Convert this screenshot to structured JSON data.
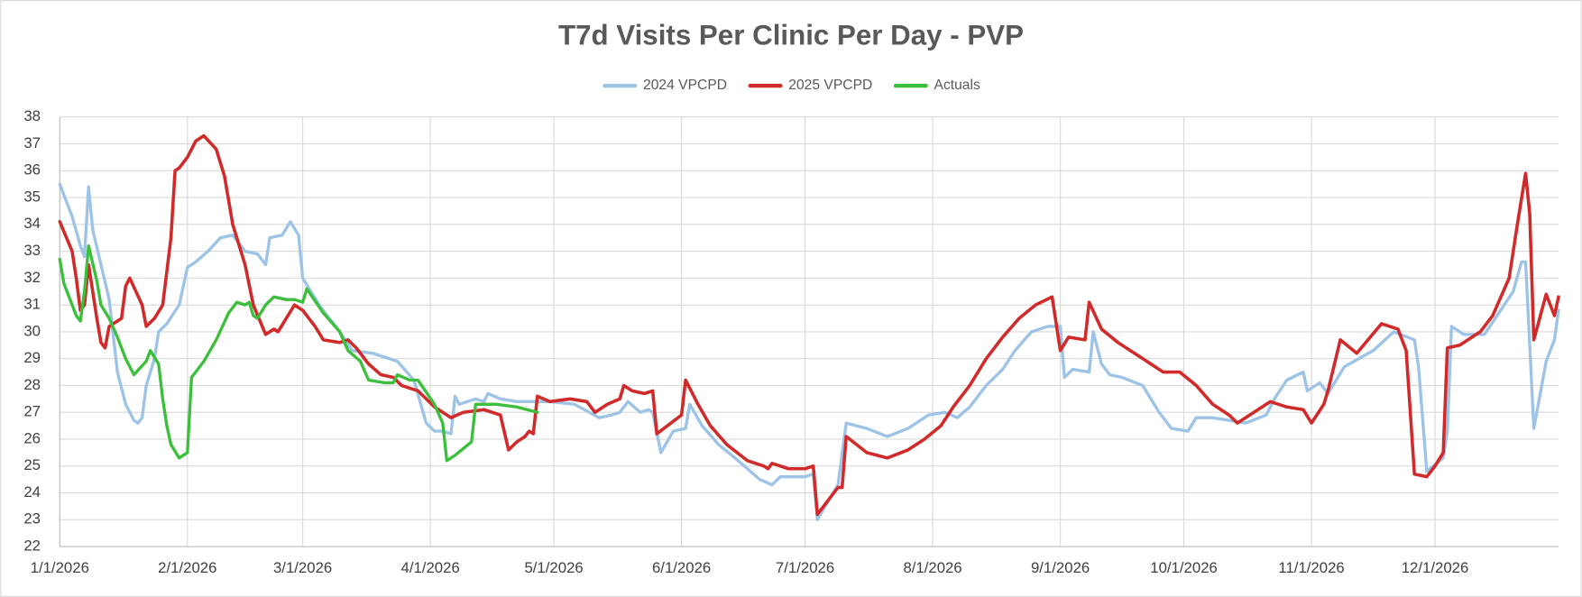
{
  "chart_data": {
    "type": "line",
    "title": "T7d Visits Per Clinic Per Day - PVP",
    "xlim": [
      "1/1/2026",
      "12/31/2026"
    ],
    "xticks": [
      "1/1/2026",
      "2/1/2026",
      "3/1/2026",
      "4/1/2026",
      "5/1/2026",
      "6/1/2026",
      "7/1/2026",
      "8/1/2026",
      "9/1/2026",
      "10/1/2026",
      "11/1/2026",
      "12/1/2026"
    ],
    "ylim": [
      22,
      38
    ],
    "yticks": [
      22,
      23,
      24,
      25,
      26,
      27,
      28,
      29,
      30,
      31,
      32,
      33,
      34,
      35,
      36,
      37,
      38
    ],
    "grid": true,
    "legend": "top",
    "series": [
      {
        "name": "2024 VPCPD",
        "color": "#9dc3e6",
        "x": [
          "1/1/2026",
          "1/4/2026",
          "1/6/2026",
          "1/7/2026",
          "1/8/2026",
          "1/9/2026",
          "1/11/2026",
          "1/13/2026",
          "1/15/2026",
          "1/17/2026",
          "1/19/2026",
          "1/20/2026",
          "1/21/2026",
          "1/22/2026",
          "1/24/2026",
          "1/25/2026",
          "1/27/2026",
          "1/30/2026",
          "2/1/2026",
          "2/3/2026",
          "2/6/2026",
          "2/9/2026",
          "2/12/2026",
          "2/15/2026",
          "2/18/2026",
          "2/20/2026",
          "2/21/2026",
          "2/24/2026",
          "2/26/2026",
          "2/28/2026",
          "3/1/2026",
          "3/5/2026",
          "3/10/2026",
          "3/13/2026",
          "3/18/2026",
          "3/24/2026",
          "3/28/2026",
          "3/31/2026",
          "4/2/2026",
          "4/4/2026",
          "4/6/2026",
          "4/7/2026",
          "4/8/2026",
          "4/12/2026",
          "4/14/2026",
          "4/15/2026",
          "4/18/2026",
          "4/22/2026",
          "4/25/2026",
          "4/30/2026",
          "5/6/2026",
          "5/12/2026",
          "5/15/2026",
          "5/17/2026",
          "5/19/2026",
          "5/22/2026",
          "5/24/2026",
          "5/25/2026",
          "5/27/2026",
          "5/30/2026",
          "6/2/2026",
          "6/3/2026",
          "6/6/2026",
          "6/10/2026",
          "6/14/2026",
          "6/17/2026",
          "6/20/2026",
          "6/23/2026",
          "6/25/2026",
          "7/1/2026",
          "7/3/2026",
          "7/4/2026",
          "7/7/2026",
          "7/9/2026",
          "7/11/2026",
          "7/16/2026",
          "7/21/2026",
          "7/26/2026",
          "7/31/2026",
          "8/4/2026",
          "8/7/2026",
          "8/10/2026",
          "8/14/2026",
          "8/18/2026",
          "8/21/2026",
          "8/25/2026",
          "8/29/2026",
          "9/1/2026",
          "9/2/2026",
          "9/4/2026",
          "9/8/2026",
          "9/9/2026",
          "9/11/2026",
          "9/13/2026",
          "9/16/2026",
          "9/21/2026",
          "9/25/2026",
          "9/28/2026",
          "10/2/2026",
          "10/4/2026",
          "10/8/2026",
          "10/12/2026",
          "10/16/2026",
          "10/21/2026",
          "10/23/2026",
          "10/26/2026",
          "10/30/2026",
          "10/31/2026",
          "11/3/2026",
          "11/5/2026",
          "11/9/2026",
          "11/16/2026",
          "11/21/2026",
          "11/26/2026",
          "11/27/2026",
          "11/29/2026",
          "12/3/2026",
          "12/4/2026",
          "12/5/2026",
          "12/8/2026",
          "12/13/2026",
          "12/20/2026",
          "12/22/2026",
          "12/23/2026",
          "12/25/2026",
          "12/28/2026",
          "12/30/2026",
          "12/31/2026"
        ],
        "values": [
          35.5,
          34.3,
          33.2,
          32.8,
          35.4,
          33.8,
          32.5,
          31.2,
          28.5,
          27.3,
          26.7,
          26.6,
          26.8,
          28.0,
          29.0,
          30.0,
          30.3,
          31.0,
          32.4,
          32.6,
          33.0,
          33.5,
          33.6,
          33.0,
          32.9,
          32.5,
          33.5,
          33.6,
          34.1,
          33.6,
          32.0,
          31.0,
          30.0,
          29.3,
          29.2,
          28.9,
          28.2,
          26.6,
          26.3,
          26.3,
          26.2,
          27.6,
          27.3,
          27.5,
          27.4,
          27.7,
          27.5,
          27.4,
          27.4,
          27.4,
          27.3,
          26.8,
          26.9,
          27.0,
          27.4,
          27.0,
          27.1,
          27.0,
          25.5,
          26.3,
          26.4,
          27.3,
          26.5,
          25.8,
          25.3,
          24.9,
          24.5,
          24.3,
          24.6,
          24.6,
          24.7,
          23.0,
          23.8,
          24.3,
          26.6,
          26.4,
          26.1,
          26.4,
          26.9,
          27.0,
          26.8,
          27.2,
          28.0,
          28.6,
          29.3,
          30.0,
          30.2,
          30.2,
          28.3,
          28.6,
          28.5,
          30.0,
          28.8,
          28.4,
          28.3,
          28.0,
          27.0,
          26.4,
          26.3,
          26.8,
          26.8,
          26.7,
          26.6,
          26.9,
          27.5,
          28.2,
          28.5,
          27.8,
          28.1,
          27.7,
          28.7,
          29.3,
          30.0,
          29.7,
          28.7,
          24.8,
          25.3,
          26.3,
          30.2,
          29.9,
          29.9,
          31.5,
          32.6,
          32.6,
          26.4,
          28.9,
          29.7,
          30.8
        ]
      },
      {
        "name": "2025 VPCPD",
        "color": "#d12a2a",
        "x": [
          "1/1/2026",
          "1/4/2026",
          "1/5/2026",
          "1/6/2026",
          "1/7/2026",
          "1/8/2026",
          "1/10/2026",
          "1/11/2026",
          "1/12/2026",
          "1/13/2026",
          "1/16/2026",
          "1/17/2026",
          "1/18/2026",
          "1/21/2026",
          "1/22/2026",
          "1/24/2026",
          "1/26/2026",
          "1/28/2026",
          "1/29/2026",
          "1/30/2026",
          "2/1/2026",
          "2/3/2026",
          "2/5/2026",
          "2/8/2026",
          "2/10/2026",
          "2/12/2026",
          "2/15/2026",
          "2/17/2026",
          "2/20/2026",
          "2/22/2026",
          "2/23/2026",
          "2/25/2026",
          "2/27/2026",
          "3/1/2026",
          "3/4/2026",
          "3/6/2026",
          "3/10/2026",
          "3/12/2026",
          "3/14/2026",
          "3/17/2026",
          "3/20/2026",
          "3/23/2026",
          "3/25/2026",
          "3/29/2026",
          "4/2/2026",
          "4/6/2026",
          "4/9/2026",
          "4/14/2026",
          "4/18/2026",
          "4/20/2026",
          "4/22/2026",
          "4/24/2026",
          "4/25/2026",
          "4/26/2026",
          "4/27/2026",
          "4/30/2026",
          "5/5/2026",
          "5/9/2026",
          "5/11/2026",
          "5/14/2026",
          "5/17/2026",
          "5/18/2026",
          "5/20/2026",
          "5/23/2026",
          "5/25/2026",
          "5/26/2026",
          "6/1/2026",
          "6/2/2026",
          "6/5/2026",
          "6/8/2026",
          "6/12/2026",
          "6/17/2026",
          "6/21/2026",
          "6/22/2026",
          "6/23/2026",
          "6/27/2026",
          "7/1/2026",
          "7/3/2026",
          "7/4/2026",
          "7/9/2026",
          "7/10/2026",
          "7/11/2026",
          "7/16/2026",
          "7/21/2026",
          "7/26/2026",
          "7/30/2026",
          "8/3/2026",
          "8/6/2026",
          "8/10/2026",
          "8/14/2026",
          "8/18/2026",
          "8/22/2026",
          "8/26/2026",
          "8/30/2026",
          "9/1/2026",
          "9/3/2026",
          "9/7/2026",
          "9/8/2026",
          "9/11/2026",
          "9/15/2026",
          "9/21/2026",
          "9/26/2026",
          "9/30/2026",
          "10/4/2026",
          "10/8/2026",
          "10/12/2026",
          "10/14/2026",
          "10/18/2026",
          "10/22/2026",
          "10/26/2026",
          "10/30/2026",
          "11/1/2026",
          "11/4/2026",
          "11/5/2026",
          "11/8/2026",
          "11/12/2026",
          "11/18/2026",
          "11/22/2026",
          "11/24/2026",
          "11/26/2026",
          "11/29/2026",
          "12/1/2026",
          "12/3/2026",
          "12/4/2026",
          "12/7/2026",
          "12/12/2026",
          "12/15/2026",
          "12/19/2026",
          "12/21/2026",
          "12/23/2026",
          "12/24/2026",
          "12/25/2026",
          "12/28/2026",
          "12/30/2026",
          "12/31/2026"
        ],
        "values": [
          34.1,
          33.0,
          32.0,
          30.8,
          31.0,
          32.5,
          30.5,
          29.6,
          29.4,
          30.2,
          30.5,
          31.7,
          32.0,
          31.0,
          30.2,
          30.5,
          31.0,
          33.5,
          36.0,
          36.1,
          36.5,
          37.1,
          37.3,
          36.8,
          35.8,
          34.0,
          32.5,
          31.0,
          29.9,
          30.1,
          30.0,
          30.5,
          31.0,
          30.8,
          30.2,
          29.7,
          29.6,
          29.7,
          29.4,
          28.8,
          28.4,
          28.3,
          28.0,
          27.8,
          27.2,
          26.8,
          27.0,
          27.1,
          26.9,
          25.6,
          25.9,
          26.1,
          26.3,
          26.2,
          27.6,
          27.4,
          27.5,
          27.4,
          27.0,
          27.3,
          27.5,
          28.0,
          27.8,
          27.7,
          27.8,
          26.2,
          26.9,
          28.2,
          27.3,
          26.5,
          25.8,
          25.2,
          25.0,
          24.9,
          25.1,
          24.9,
          24.9,
          25.0,
          23.2,
          24.2,
          24.2,
          26.1,
          25.5,
          25.3,
          25.6,
          26.0,
          26.5,
          27.2,
          28.0,
          29.0,
          29.8,
          30.5,
          31.0,
          31.3,
          29.3,
          29.8,
          29.7,
          31.1,
          30.1,
          29.6,
          29.0,
          28.5,
          28.5,
          28.0,
          27.3,
          26.9,
          26.6,
          27.0,
          27.4,
          27.2,
          27.1,
          26.6,
          27.3,
          27.8,
          29.7,
          29.2,
          30.3,
          30.1,
          29.3,
          24.7,
          24.6,
          25.0,
          25.5,
          29.4,
          29.5,
          30.0,
          30.6,
          32.0,
          34.0,
          35.9,
          34.4,
          29.7,
          31.4,
          30.6,
          31.3
        ]
      },
      {
        "name": "Actuals",
        "color": "#3cbf3c",
        "x": [
          "1/1/2026",
          "1/2/2026",
          "1/4/2026",
          "1/5/2026",
          "1/6/2026",
          "1/7/2026",
          "1/8/2026",
          "1/10/2026",
          "1/11/2026",
          "1/13/2026",
          "1/15/2026",
          "1/17/2026",
          "1/19/2026",
          "1/22/2026",
          "1/23/2026",
          "1/25/2026",
          "1/26/2026",
          "1/27/2026",
          "1/28/2026",
          "1/30/2026",
          "2/1/2026",
          "2/2/2026",
          "2/5/2026",
          "2/8/2026",
          "2/11/2026",
          "2/13/2026",
          "2/15/2026",
          "2/16/2026",
          "2/17/2026",
          "2/18/2026",
          "2/20/2026",
          "2/22/2026",
          "2/25/2026",
          "2/27/2026",
          "3/1/2026",
          "3/2/2026",
          "3/6/2026",
          "3/10/2026",
          "3/12/2026",
          "3/15/2026",
          "3/17/2026",
          "3/21/2026",
          "3/23/2026",
          "3/24/2026",
          "3/27/2026",
          "3/29/2026",
          "4/2/2026",
          "4/4/2026",
          "4/5/2026",
          "4/7/2026",
          "4/11/2026",
          "4/12/2026",
          "4/17/2026",
          "4/22/2026",
          "4/27/2026"
        ],
        "values": [
          32.7,
          31.8,
          31.0,
          30.6,
          30.4,
          31.5,
          33.2,
          31.9,
          31.0,
          30.5,
          29.8,
          29.0,
          28.4,
          28.9,
          29.3,
          28.8,
          27.5,
          26.5,
          25.8,
          25.3,
          25.5,
          28.3,
          28.9,
          29.7,
          30.7,
          31.1,
          31.0,
          31.1,
          30.6,
          30.5,
          31.0,
          31.3,
          31.2,
          31.2,
          31.1,
          31.6,
          30.7,
          30.0,
          29.3,
          28.9,
          28.2,
          28.1,
          28.1,
          28.4,
          28.2,
          28.2,
          27.3,
          26.6,
          25.2,
          25.4,
          25.9,
          27.3,
          27.3,
          27.2,
          27.0
        ]
      }
    ]
  }
}
